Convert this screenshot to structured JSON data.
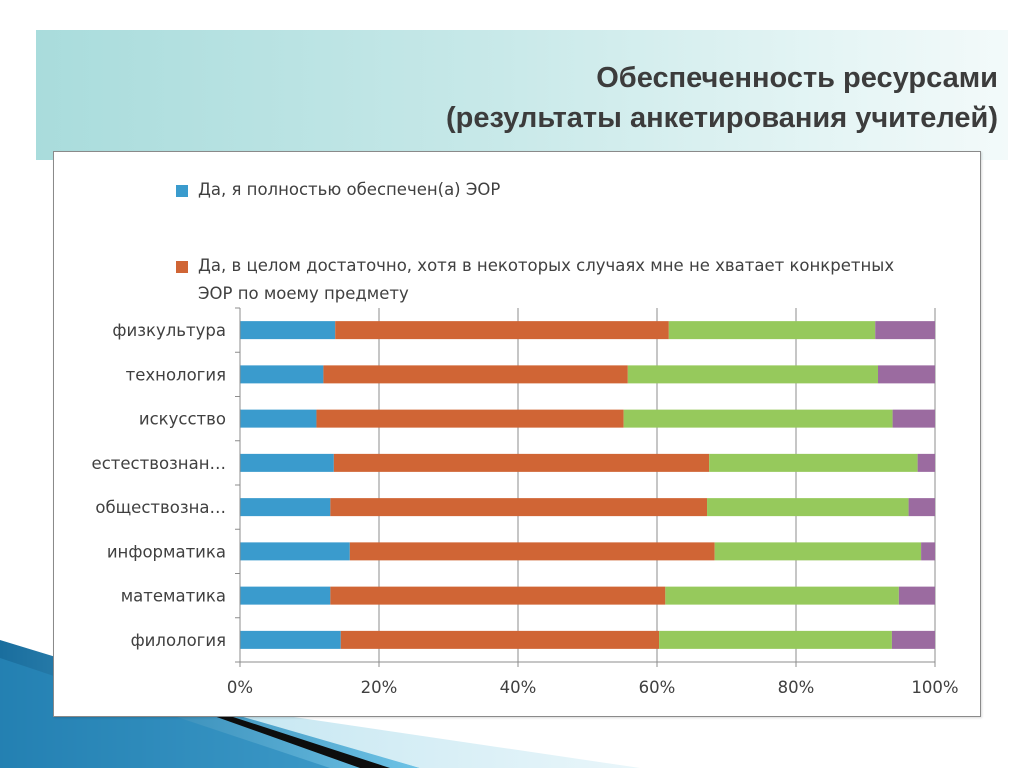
{
  "slide": {
    "title_line1": "Обеспеченность ресурсами",
    "title_line2": "(результаты анкетирования учителей)"
  },
  "colors": {
    "series1": "#3a9bcd",
    "series2": "#d06535",
    "series3": "#96c95c",
    "series4": "#9b6ba0"
  },
  "chart_data": {
    "type": "bar",
    "orientation": "horizontal",
    "stacked": "percent",
    "categories": [
      "физкультура",
      "технология",
      "искусство",
      "естествознан…",
      "обществозна…",
      "информатика",
      "математика",
      "филология"
    ],
    "series": [
      {
        "name": "Да, я полностью обеспечен(а) ЭОР",
        "values": [
          13.7,
          12.0,
          11.0,
          13.5,
          13.0,
          15.8,
          13.0,
          14.5
        ]
      },
      {
        "name": "Да, в целом достаточно, хотя в некоторых случаях мне не хватает конкретных ЭОР по моему предмету",
        "values": [
          48.0,
          43.8,
          44.2,
          54.0,
          54.2,
          52.5,
          48.2,
          45.8
        ]
      },
      {
        "values": [
          29.7,
          36.0,
          38.7,
          30.0,
          29.0,
          29.7,
          33.6,
          33.5
        ]
      },
      {
        "values": [
          8.6,
          8.2,
          6.1,
          2.5,
          3.8,
          2.0,
          5.2,
          6.2
        ]
      }
    ],
    "xlim": [
      0,
      100
    ],
    "xticks": [
      "0%",
      "20%",
      "40%",
      "60%",
      "80%",
      "100%"
    ],
    "grid": "vertical",
    "legend_position": "top"
  }
}
